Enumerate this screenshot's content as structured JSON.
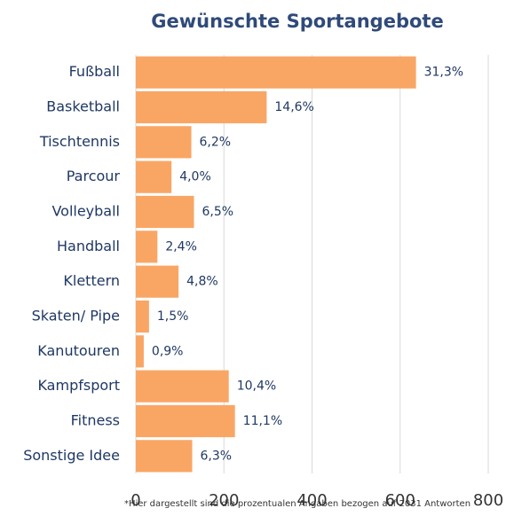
{
  "chart_data": {
    "type": "bar",
    "orientation": "horizontal",
    "title": "Gewünschte Sportangebote",
    "categories": [
      "Fußball",
      "Basketball",
      "Tischtennis",
      "Parcour",
      "Volleyball",
      "Handball",
      "Klettern",
      "Skaten/ Pipe",
      "Kanutouren",
      "Kampfsport",
      "Fitness",
      "Sonstige Idee"
    ],
    "values": [
      636,
      297,
      126,
      81,
      132,
      49,
      97,
      30,
      18,
      211,
      225,
      128
    ],
    "value_labels": [
      "31,3%",
      "14,6%",
      "6,2%",
      "4,0%",
      "6,5%",
      "2,4%",
      "4,8%",
      "1,5%",
      "0,9%",
      "10,4%",
      "11,1%",
      "6,3%"
    ],
    "color": "#f9a665",
    "xlim": [
      0,
      800
    ],
    "xticks": [
      0,
      200,
      400,
      600,
      800
    ],
    "grid": true,
    "note": "*Hier dargestellt sind die prozentualen Angaben bezogen auf 2031 Antworten"
  }
}
